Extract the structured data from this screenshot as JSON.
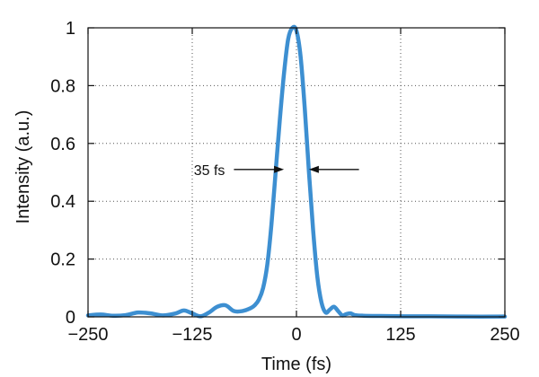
{
  "chart_data": {
    "type": "line",
    "title": "",
    "xlabel": "Time (fs)",
    "ylabel": "Intensity (a.u.)",
    "xlim": [
      -250,
      250
    ],
    "ylim": [
      0,
      1
    ],
    "grid": true,
    "x_ticks": [
      -250,
      -125,
      0,
      125,
      250
    ],
    "x_tick_labels": [
      "−250",
      "−125",
      "0",
      "125",
      "250"
    ],
    "y_ticks": [
      0,
      0.2,
      0.4,
      0.6,
      0.8,
      1
    ],
    "y_tick_labels": [
      "0",
      "0.2",
      "0.4",
      "0.6",
      "0.8",
      "1"
    ],
    "series": [
      {
        "color": "#3d8fd1",
        "x": [
          -250,
          -235,
          -220,
          -205,
          -190,
          -175,
          -160,
          -145,
          -135,
          -125,
          -115,
          -105,
          -95,
          -85,
          -75,
          -65,
          -55,
          -50,
          -45,
          -40,
          -35,
          -30,
          -25,
          -20,
          -15,
          -10,
          -5,
          0,
          5,
          10,
          15,
          20,
          25,
          30,
          35,
          40,
          45,
          50,
          55,
          60,
          65,
          70,
          80,
          100,
          130,
          160,
          200,
          250
        ],
        "y": [
          0.005,
          0.008,
          0.004,
          0.006,
          0.015,
          0.012,
          0.005,
          0.012,
          0.022,
          0.012,
          0.002,
          0.015,
          0.035,
          0.04,
          0.02,
          0.02,
          0.03,
          0.04,
          0.06,
          0.1,
          0.18,
          0.32,
          0.5,
          0.68,
          0.84,
          0.96,
          1.0,
          0.99,
          0.9,
          0.72,
          0.5,
          0.3,
          0.14,
          0.05,
          0.015,
          0.025,
          0.035,
          0.02,
          0.005,
          0.01,
          0.012,
          0.006,
          0.004,
          0.003,
          0.002,
          0.002,
          0.001,
          0.001
        ]
      }
    ],
    "annotations": [
      {
        "text": "35 fs",
        "left_arrow_from_x": -75,
        "left_arrow_to_x": -15,
        "right_arrow_from_x": 75,
        "right_arrow_to_x": 15,
        "y": 0.51
      }
    ]
  }
}
